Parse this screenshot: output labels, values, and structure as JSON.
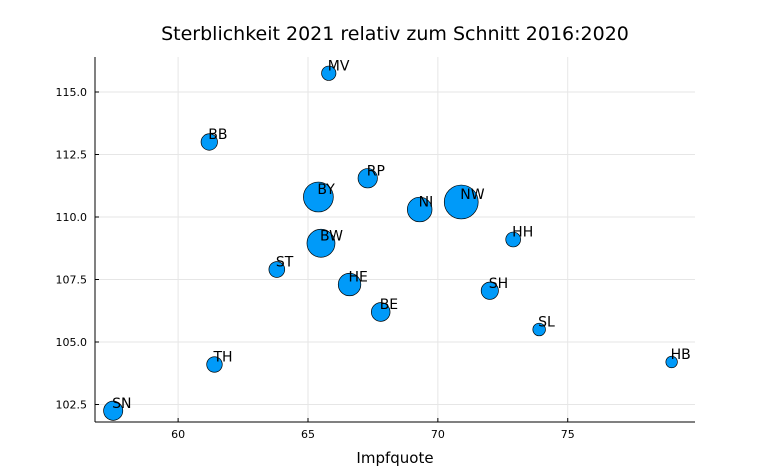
{
  "chart_data": {
    "type": "scatter",
    "title": "Sterblichkeit 2021 relativ zum Schnitt 2016:2020",
    "xlabel": "Impfquote",
    "ylabel": "",
    "xlim": [
      56.8,
      79.9
    ],
    "ylim": [
      101.8,
      116.4
    ],
    "xticks": [
      60,
      65,
      70,
      75
    ],
    "yticks": [
      102.5,
      105.0,
      107.5,
      110.0,
      112.5,
      115.0
    ],
    "xtick_labels": [
      "60",
      "65",
      "70",
      "75"
    ],
    "ytick_labels": [
      "102.5",
      "105.0",
      "107.5",
      "110.0",
      "112.5",
      "115.0"
    ],
    "grid": true,
    "legend": "none",
    "marker_color": "#009af9",
    "points": [
      {
        "label": "MV",
        "x": 65.8,
        "y": 115.75,
        "size": 1.6
      },
      {
        "label": "BB",
        "x": 61.2,
        "y": 113.0,
        "size": 2.5
      },
      {
        "label": "RP",
        "x": 67.3,
        "y": 111.55,
        "size": 4.1
      },
      {
        "label": "BY",
        "x": 65.4,
        "y": 110.8,
        "size": 13.1
      },
      {
        "label": "NI",
        "x": 69.3,
        "y": 110.3,
        "size": 8.0
      },
      {
        "label": "NW",
        "x": 70.9,
        "y": 110.6,
        "size": 17.9
      },
      {
        "label": "HH",
        "x": 72.9,
        "y": 109.1,
        "size": 1.8
      },
      {
        "label": "BW",
        "x": 65.5,
        "y": 108.95,
        "size": 11.1
      },
      {
        "label": "ST",
        "x": 63.8,
        "y": 107.9,
        "size": 2.2
      },
      {
        "label": "HE",
        "x": 66.6,
        "y": 107.3,
        "size": 6.3
      },
      {
        "label": "SH",
        "x": 72.0,
        "y": 107.05,
        "size": 2.9
      },
      {
        "label": "BE",
        "x": 67.8,
        "y": 106.2,
        "size": 3.7
      },
      {
        "label": "SL",
        "x": 73.9,
        "y": 105.5,
        "size": 1.0
      },
      {
        "label": "TH",
        "x": 61.4,
        "y": 104.1,
        "size": 2.1
      },
      {
        "label": "HB",
        "x": 79.0,
        "y": 104.2,
        "size": 0.7
      },
      {
        "label": "SN",
        "x": 57.5,
        "y": 102.25,
        "size": 4.0
      }
    ]
  }
}
